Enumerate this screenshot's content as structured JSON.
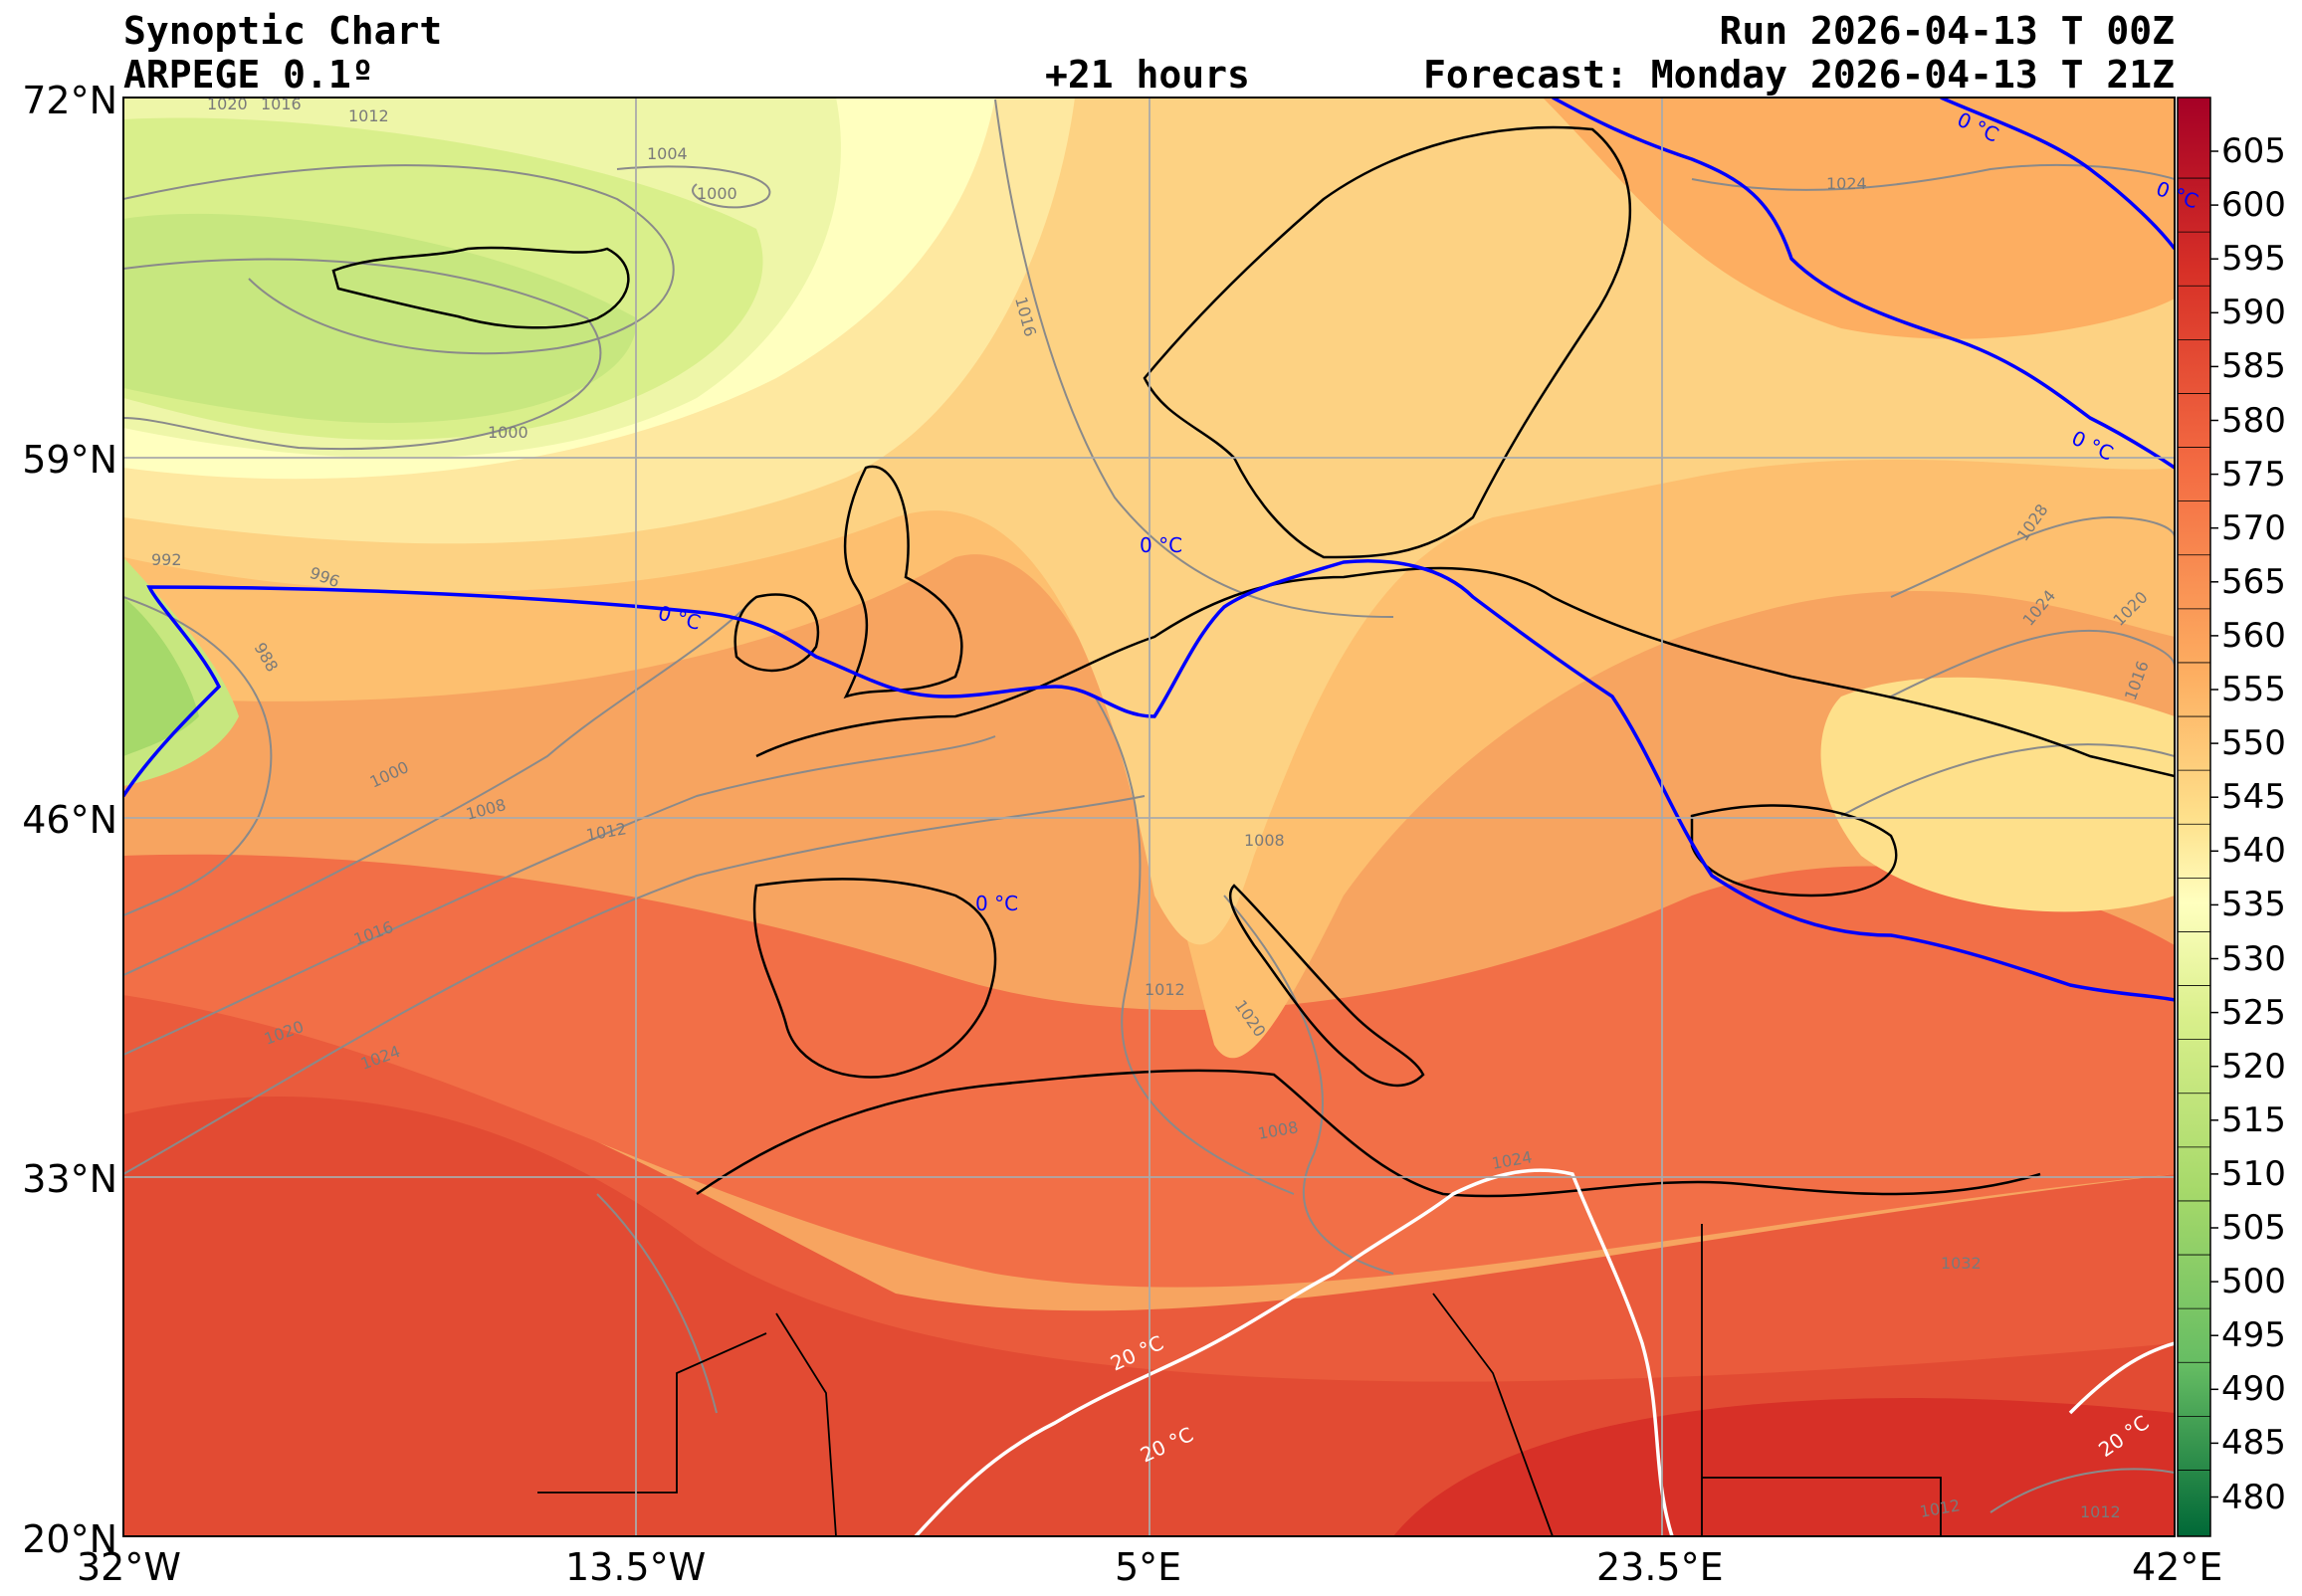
{
  "header": {
    "title_line1": "Synoptic Chart",
    "title_line2": "ARPEGE 0.1º",
    "lead_time": "+21 hours",
    "run": "Run 2026-04-13 T 00Z",
    "forecast": "Forecast: Monday 2026-04-13 T 21Z"
  },
  "axes": {
    "lat_labels": [
      "72°N",
      "59°N",
      "46°N",
      "33°N",
      "20°N"
    ],
    "lon_labels": [
      "32°W",
      "13.5°W",
      "5°E",
      "23.5°E",
      "42°E"
    ]
  },
  "colorbar": {
    "labels": [
      "605",
      "600",
      "595",
      "590",
      "585",
      "580",
      "575",
      "570",
      "565",
      "560",
      "555",
      "550",
      "545",
      "540",
      "535",
      "530",
      "525",
      "520",
      "515",
      "510",
      "505",
      "500",
      "495",
      "490",
      "485",
      "480"
    ]
  },
  "isobars": [
    "1020",
    "1016",
    "1012",
    "1004",
    "1000",
    "1016",
    "1000",
    "992",
    "996",
    "988",
    "1000",
    "1008",
    "1012",
    "1016",
    "1020",
    "1024",
    "1024",
    "1032",
    "1024",
    "1020",
    "1012",
    "1008",
    "1008",
    "1028",
    "1024",
    "1020",
    "1016",
    "1012",
    "1012"
  ],
  "isotherm_labels": {
    "zero": "0 °C",
    "twenty": "20 °C"
  },
  "colors": {
    "isotherm_zero": "#0000ff",
    "isotherm_twenty": "#ffffff",
    "isobar": "#8a8a8a",
    "coastline": "#000000"
  }
}
